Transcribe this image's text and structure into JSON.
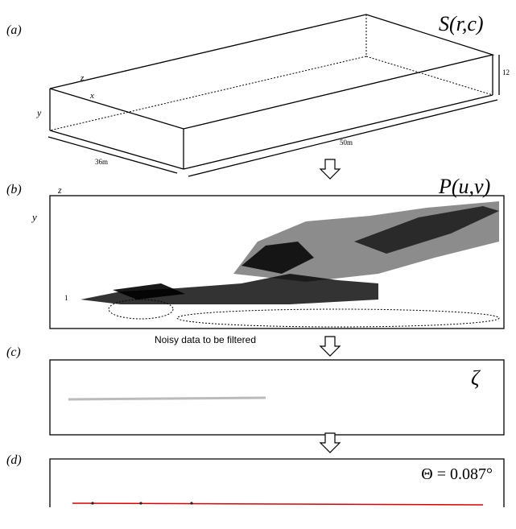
{
  "panels": [
    {
      "label": "(a)",
      "title": "S(r,c)",
      "axis_z": "z",
      "axis_x": "x",
      "axis_y": "y",
      "height": "12",
      "width": "36m",
      "length": "50m"
    },
    {
      "label": "(b)",
      "title": "P(u,v)",
      "axis_z": "z",
      "axis_y": "y",
      "origin": "1",
      "annotation": "Noisy data to be filtered"
    },
    {
      "label": "(c)",
      "title": "ζ"
    },
    {
      "label": "(d)",
      "title": "Θ = 0.087°"
    }
  ]
}
